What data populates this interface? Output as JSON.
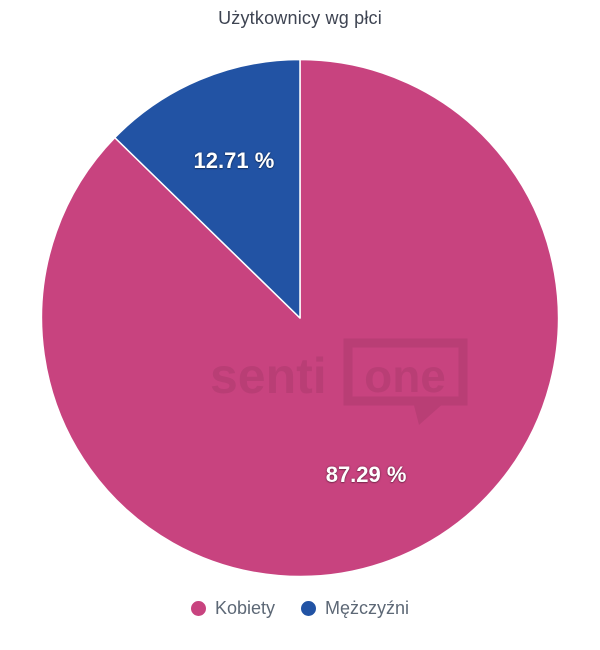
{
  "chart_data": {
    "type": "pie",
    "title": "Użytkownicy wg płci",
    "series": [
      {
        "name": "Kobiety",
        "value": 87.29,
        "label": "87.29 %",
        "color": "#c8437f"
      },
      {
        "name": "Mężczyźni",
        "value": 12.71,
        "label": "12.71 %",
        "color": "#2253a4"
      }
    ],
    "start_angle_deg": 0,
    "direction": "clockwise",
    "slice_border_color": "#ffffff",
    "legend_position": "bottom",
    "label_placement": "inside"
  },
  "watermark": {
    "name": "sentione-logo",
    "text_left": "senti",
    "text_bubble": "one"
  }
}
